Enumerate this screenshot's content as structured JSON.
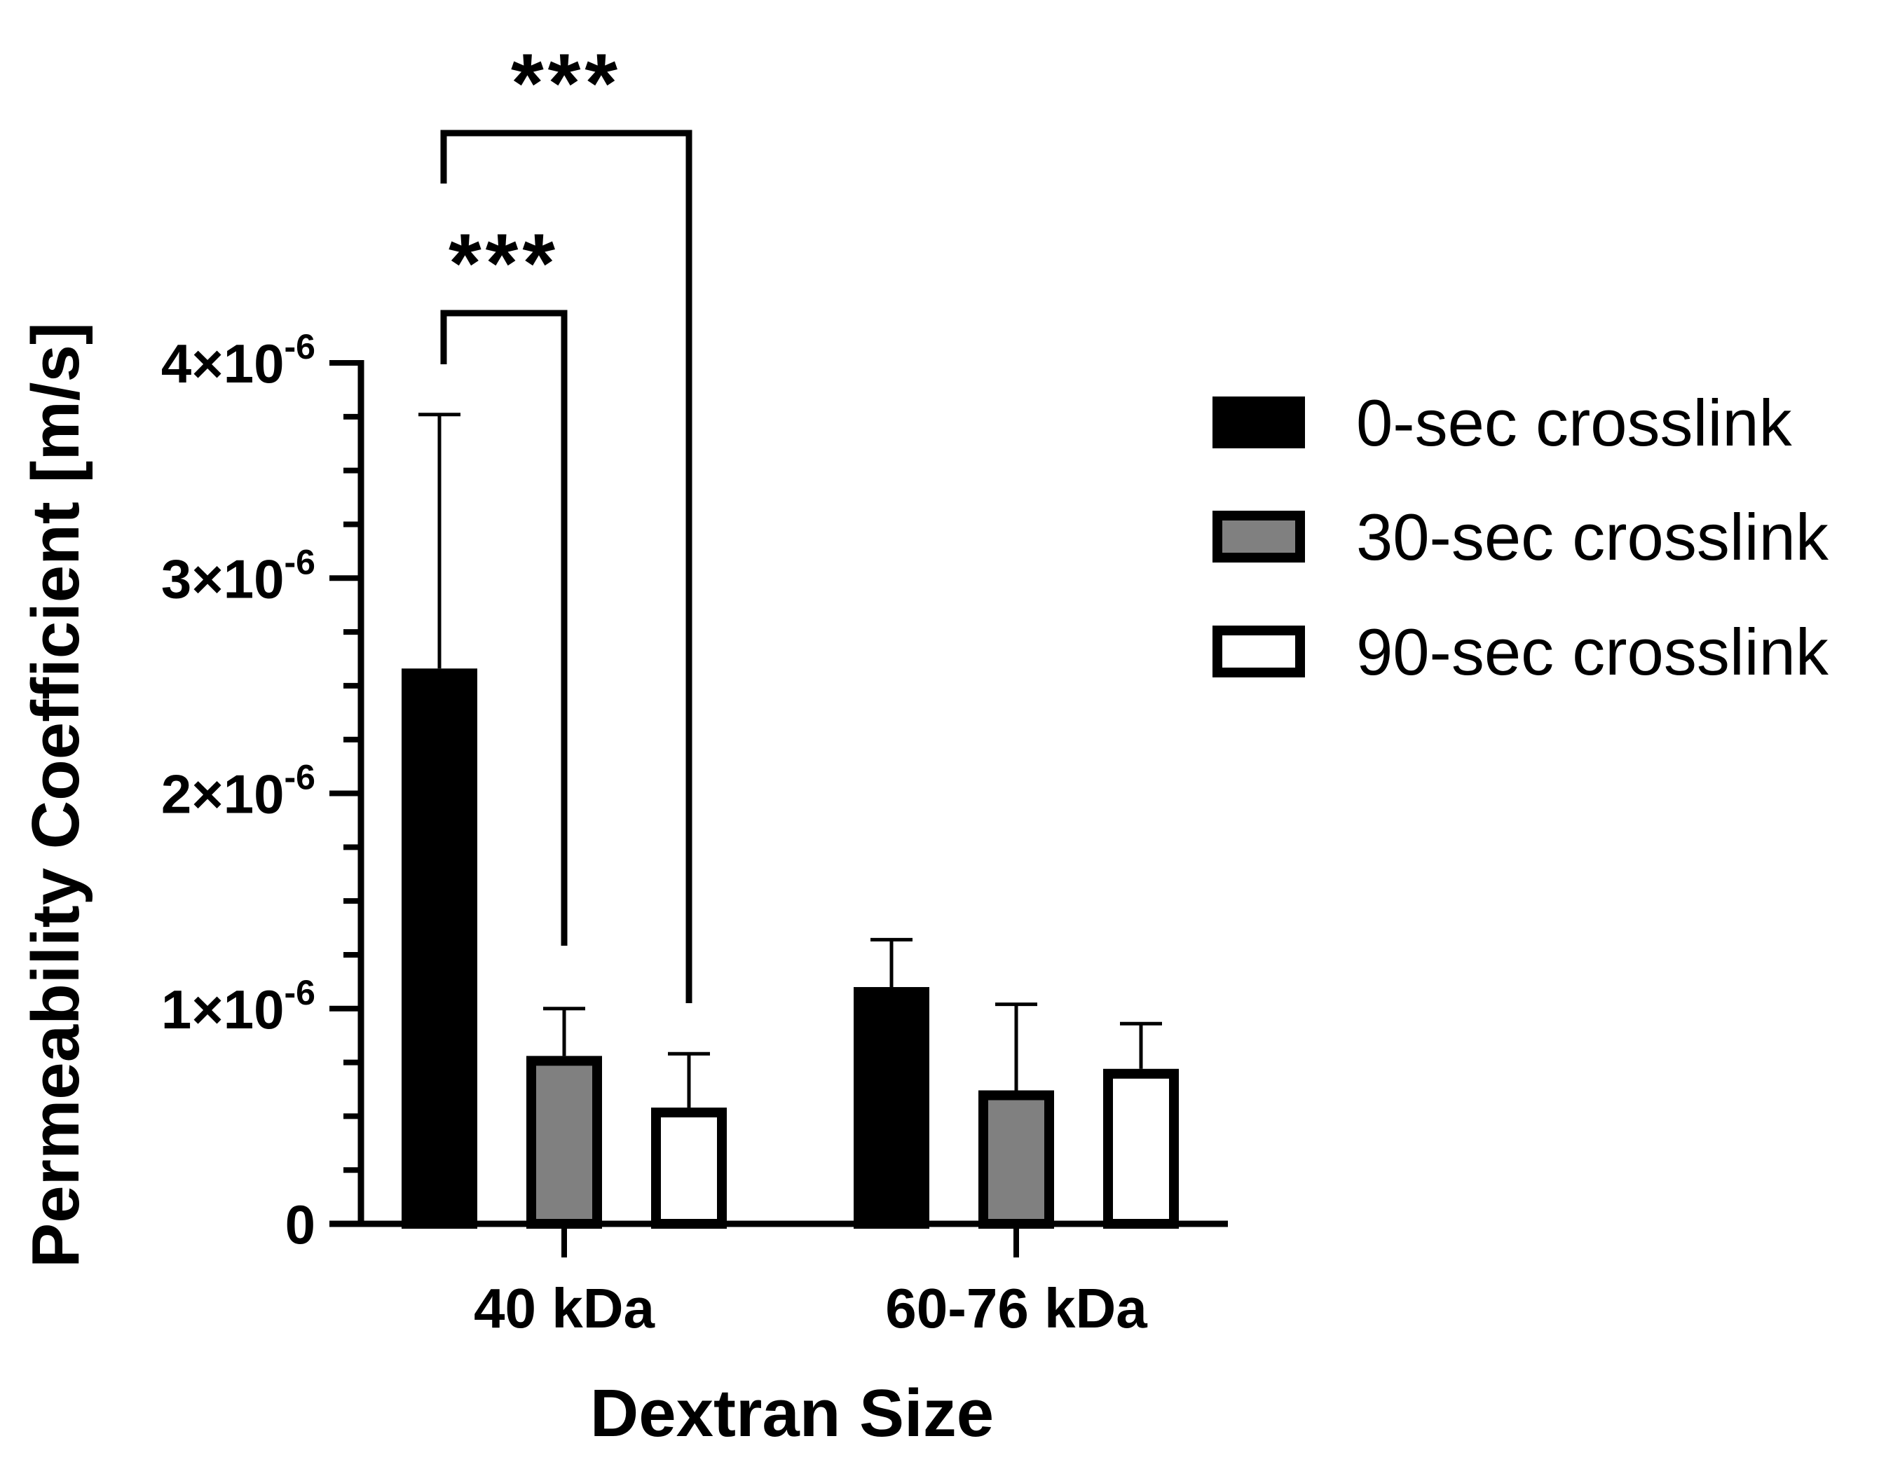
{
  "chart_data": {
    "type": "bar",
    "title": "",
    "xlabel": "Dextran Size",
    "ylabel": "Permeability Coefficient [m/s]",
    "ylim": [
      0,
      4e-06
    ],
    "yticks": [
      {
        "value": 4e-06,
        "base": "4×10",
        "exp": "-6"
      },
      {
        "value": 3e-06,
        "base": "3×10",
        "exp": "-6"
      },
      {
        "value": 2e-06,
        "base": "2×10",
        "exp": "-6"
      },
      {
        "value": 1e-06,
        "base": "1×10",
        "exp": "-6"
      },
      {
        "value": 0,
        "base": "0",
        "exp": ""
      }
    ],
    "categories": [
      "40 kDa",
      "60-76 kDa"
    ],
    "series": [
      {
        "name": "0-sec crosslink",
        "color": "#000000",
        "values": [
          2.58e-06,
          1.1e-06
        ],
        "errors": [
          1.18e-06,
          2.2e-07
        ]
      },
      {
        "name": "30-sec crosslink",
        "color": "#808080",
        "values": [
          7.8e-07,
          6.2e-07
        ],
        "errors": [
          2.2e-07,
          4e-07
        ]
      },
      {
        "name": "90-sec crosslink",
        "color": "#ffffff",
        "values": [
          5.4e-07,
          7.2e-07
        ],
        "errors": [
          2.5e-07,
          2.1e-07
        ]
      }
    ],
    "significance": [
      {
        "category": 0,
        "from_series": 0,
        "to_series": 1,
        "label": "***"
      },
      {
        "category": 0,
        "from_series": 0,
        "to_series": 2,
        "label": "***"
      }
    ],
    "grid": false,
    "legend_position": "right"
  }
}
